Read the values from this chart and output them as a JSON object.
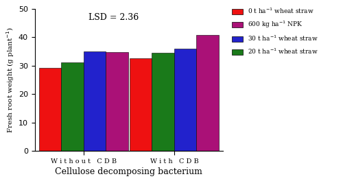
{
  "groups": [
    "W i t h o u t   C D B",
    "W i t h   C D B"
  ],
  "series": [
    {
      "label": "0 t ha$^{-1}$ wheat straw",
      "color": "#EE1111",
      "values": [
        29.3,
        32.5
      ]
    },
    {
      "label": "20 t ha$^{-1}$ wheat straw",
      "color": "#1A7A1A",
      "values": [
        31.2,
        34.5
      ]
    },
    {
      "label": "30 t ha$^{-1}$ wheat straw",
      "color": "#2222CC",
      "values": [
        35.0,
        36.0
      ]
    },
    {
      "label": "600 kg ha$^{-1}$ NPK",
      "color": "#AA1177",
      "values": [
        34.8,
        40.8
      ]
    }
  ],
  "legend_order": [
    0,
    3,
    2,
    1
  ],
  "legend_labels": [
    "0 t ha$^{-1}$ wheat straw",
    "600 kg ha$^{-1}$ NPK",
    "30 t ha$^{-1}$ wheat straw",
    "20 t ha$^{-1}$ wheat straw"
  ],
  "legend_colors": [
    "#EE1111",
    "#AA1177",
    "#2222CC",
    "#1A7A1A"
  ],
  "ylabel": "Fresh root weight (g plant$^{-1}$)",
  "xlabel": "Cellulose decomposing bacterium",
  "annotation": "LSD = 2.36",
  "ylim": [
    0,
    50
  ],
  "yticks": [
    0,
    10,
    20,
    30,
    40,
    50
  ],
  "bar_width": 0.16,
  "group_positions": [
    0.45,
    1.1
  ]
}
